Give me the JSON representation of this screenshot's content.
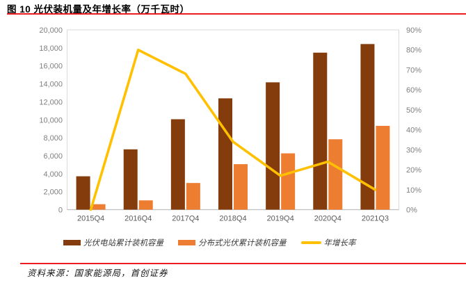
{
  "title": "图 10 光伏装机量及年增长率（万千瓦时）",
  "source_note": "资料来源：国家能源局，首创证券",
  "colors": {
    "station_bar": "#843C0C",
    "distributed_bar": "#ED7D31",
    "growth_line": "#FFC000",
    "rule_red": "#ED1C24",
    "left_axis_text": "#7F7F7F",
    "right_axis_text": "#7F7F7F",
    "x_axis_text": "#595959",
    "plot_border": "#D9D9D9",
    "axis_line": "#BFBFBF"
  },
  "chart_data": {
    "type": "bar",
    "subtype": "combo-bar-line-dual-axis",
    "title": "图 10 光伏装机量及年增长率（万千瓦时）",
    "categories": [
      "2015Q4",
      "2016Q4",
      "2017Q4",
      "2018Q4",
      "2019Q4",
      "2020Q4",
      "2021Q3"
    ],
    "series": [
      {
        "name": "光伏电站累计装机容量",
        "type": "bar",
        "axis": "left",
        "color": "#843C0C",
        "values": [
          3712,
          6710,
          10059,
          12384,
          14167,
          17468,
          18426
        ]
      },
      {
        "name": "分布式光伏累计装机容量",
        "type": "bar",
        "axis": "left",
        "color": "#ED7D31",
        "values": [
          606,
          1032,
          2966,
          5061,
          6263,
          7831,
          9323
        ]
      },
      {
        "name": "年增长率",
        "type": "line",
        "axis": "right",
        "color": "#FFC000",
        "values": [
          0,
          80,
          68,
          34,
          17,
          24,
          10
        ],
        "unit": "%"
      }
    ],
    "left_axis": {
      "min": 0,
      "max": 20000,
      "step": 2000,
      "tick_labels": [
        "0",
        "2,000",
        "4,000",
        "6,000",
        "8,000",
        "10,000",
        "12,000",
        "14,000",
        "16,000",
        "18,000",
        "20,000"
      ]
    },
    "right_axis": {
      "min": 0,
      "max": 90,
      "step": 10,
      "tick_labels": [
        "0%",
        "10%",
        "20%",
        "30%",
        "40%",
        "50%",
        "60%",
        "70%",
        "80%",
        "90%"
      ]
    },
    "grid": false,
    "legend_position": "bottom"
  }
}
